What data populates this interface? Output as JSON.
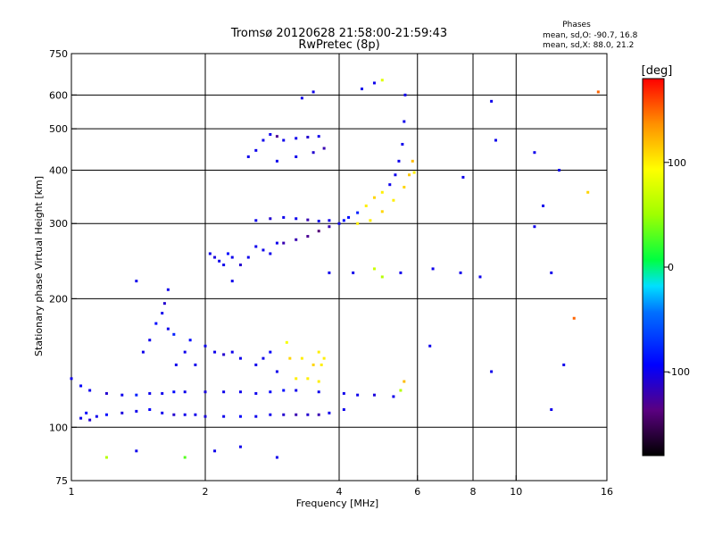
{
  "chart_data": {
    "type": "scatter",
    "title": "Tromsø 20120628 21:58:00-21:59:43",
    "subtitle": "RwPretec (8p)",
    "xlabel": "Frequency [MHz]",
    "ylabel": "Stationary phase Virtual Height [km]",
    "x_scale": "log",
    "y_scale": "log",
    "xlim": [
      1,
      16
    ],
    "ylim": [
      75,
      750
    ],
    "x_ticks": [
      1,
      2,
      4,
      6,
      8,
      10,
      16
    ],
    "x_tick_labels": [
      "1",
      "2",
      "4",
      "6",
      "8",
      "10",
      "16"
    ],
    "x_grid": [
      2,
      4,
      6,
      8,
      10
    ],
    "y_ticks": [
      75,
      100,
      200,
      300,
      400,
      500,
      600,
      750
    ],
    "y_tick_labels": [
      "75",
      "100",
      "200",
      "300",
      "400",
      "500",
      "600",
      "750"
    ],
    "y_grid": [
      100,
      200,
      300,
      400,
      500,
      600
    ],
    "grid": true,
    "phases": {
      "header": "Phases",
      "line_o": "mean, sd,O: -90.7, 16.8",
      "line_x": "mean, sd,X:  88.0, 21.2"
    },
    "colorbar": {
      "label": "[deg]",
      "range": [
        -180,
        180
      ],
      "ticks": [
        100,
        0,
        -100
      ],
      "tick_labels": [
        "100",
        "0",
        "-100"
      ]
    },
    "series": [
      {
        "points": [
          [
            1.05,
            105,
            -100
          ],
          [
            1.08,
            108,
            -95
          ],
          [
            1.1,
            104,
            -110
          ],
          [
            1.14,
            106,
            -100
          ],
          [
            1.2,
            107,
            -90
          ],
          [
            1.3,
            108,
            -105
          ],
          [
            1.4,
            109,
            -100
          ],
          [
            1.5,
            110,
            -95
          ],
          [
            1.6,
            108,
            -100
          ],
          [
            1.7,
            107,
            -110
          ],
          [
            1.8,
            107,
            -100
          ],
          [
            1.9,
            107,
            -100
          ],
          [
            2.0,
            106,
            -105
          ],
          [
            2.2,
            106,
            -100
          ],
          [
            2.4,
            106,
            -95
          ],
          [
            2.6,
            106,
            -100
          ],
          [
            2.8,
            107,
            -100
          ],
          [
            3.0,
            107,
            -110
          ],
          [
            3.2,
            107,
            -120
          ],
          [
            3.4,
            107,
            -110
          ],
          [
            3.6,
            107,
            -120
          ],
          [
            3.8,
            108,
            -100
          ],
          [
            4.1,
            110,
            -100
          ],
          [
            1.0,
            130,
            -100
          ],
          [
            1.05,
            125,
            -95
          ],
          [
            1.1,
            122,
            -100
          ],
          [
            1.2,
            120,
            -110
          ],
          [
            1.3,
            119,
            -100
          ],
          [
            1.4,
            119,
            -80
          ],
          [
            1.5,
            120,
            -100
          ],
          [
            1.6,
            120,
            -100
          ],
          [
            1.7,
            121,
            -90
          ],
          [
            1.8,
            121,
            -100
          ],
          [
            2.0,
            121,
            -105
          ],
          [
            2.2,
            121,
            -100
          ],
          [
            2.4,
            121,
            -100
          ],
          [
            2.6,
            120,
            -100
          ],
          [
            2.8,
            121,
            -95
          ],
          [
            3.0,
            122,
            -90
          ],
          [
            3.2,
            122,
            -100
          ],
          [
            3.6,
            121,
            -100
          ],
          [
            4.1,
            120,
            -100
          ],
          [
            4.4,
            119,
            -100
          ],
          [
            4.8,
            119,
            -105
          ],
          [
            5.3,
            118,
            -100
          ],
          [
            5.5,
            122,
            60
          ],
          [
            5.6,
            128,
            120
          ],
          [
            1.45,
            150,
            -100
          ],
          [
            1.5,
            160,
            -100
          ],
          [
            1.55,
            175,
            -90
          ],
          [
            1.6,
            185,
            -100
          ],
          [
            1.62,
            195,
            -110
          ],
          [
            1.65,
            170,
            -100
          ],
          [
            1.7,
            165,
            -80
          ],
          [
            1.72,
            140,
            -100
          ],
          [
            1.8,
            150,
            -100
          ],
          [
            1.85,
            160,
            -90
          ],
          [
            1.9,
            140,
            -100
          ],
          [
            2.0,
            155,
            -100
          ],
          [
            2.1,
            150,
            -100
          ],
          [
            2.2,
            148,
            -110
          ],
          [
            2.3,
            150,
            -100
          ],
          [
            2.4,
            145,
            -100
          ],
          [
            2.6,
            140,
            -100
          ],
          [
            2.7,
            145,
            -100
          ],
          [
            2.8,
            150,
            -95
          ],
          [
            2.9,
            135,
            -100
          ],
          [
            3.05,
            158,
            90
          ],
          [
            3.1,
            145,
            110
          ],
          [
            3.2,
            130,
            100
          ],
          [
            3.3,
            145,
            100
          ],
          [
            3.4,
            130,
            100
          ],
          [
            3.5,
            140,
            110
          ],
          [
            3.6,
            150,
            100
          ],
          [
            3.6,
            128,
            100
          ],
          [
            3.65,
            140,
            100
          ],
          [
            3.7,
            145,
            100
          ],
          [
            2.05,
            255,
            -100
          ],
          [
            2.1,
            250,
            -105
          ],
          [
            2.15,
            245,
            -100
          ],
          [
            2.2,
            240,
            -100
          ],
          [
            2.25,
            255,
            -90
          ],
          [
            2.3,
            250,
            -100
          ],
          [
            2.4,
            240,
            -110
          ],
          [
            2.5,
            250,
            -100
          ],
          [
            2.6,
            265,
            -100
          ],
          [
            2.7,
            260,
            -100
          ],
          [
            2.8,
            255,
            -100
          ],
          [
            2.9,
            270,
            -100
          ],
          [
            3.0,
            270,
            -120
          ],
          [
            3.2,
            275,
            -120
          ],
          [
            3.4,
            280,
            -130
          ],
          [
            3.6,
            288,
            -140
          ],
          [
            3.8,
            295,
            -120
          ],
          [
            4.0,
            300,
            -100
          ],
          [
            4.2,
            310,
            -90
          ],
          [
            4.4,
            318,
            -80
          ],
          [
            4.6,
            330,
            100
          ],
          [
            4.8,
            345,
            110
          ],
          [
            5.0,
            355,
            100
          ],
          [
            5.2,
            370,
            -100
          ],
          [
            5.35,
            390,
            -100
          ],
          [
            5.45,
            420,
            -100
          ],
          [
            5.55,
            460,
            -100
          ],
          [
            5.6,
            520,
            -100
          ],
          [
            5.63,
            600,
            -100
          ],
          [
            2.6,
            305,
            -100
          ],
          [
            2.8,
            308,
            -110
          ],
          [
            3.0,
            310,
            -100
          ],
          [
            3.2,
            308,
            -100
          ],
          [
            3.4,
            306,
            -120
          ],
          [
            3.6,
            304,
            -100
          ],
          [
            3.8,
            305,
            -100
          ],
          [
            4.1,
            305,
            -90
          ],
          [
            4.4,
            300,
            100
          ],
          [
            4.7,
            305,
            100
          ],
          [
            5.0,
            320,
            110
          ],
          [
            5.3,
            340,
            100
          ],
          [
            5.6,
            365,
            110
          ],
          [
            5.75,
            390,
            115
          ],
          [
            5.85,
            420,
            120
          ],
          [
            5.9,
            395,
            100
          ],
          [
            2.5,
            430,
            -100
          ],
          [
            2.6,
            445,
            -100
          ],
          [
            2.7,
            470,
            -100
          ],
          [
            2.8,
            485,
            -100
          ],
          [
            2.9,
            480,
            -130
          ],
          [
            3.0,
            470,
            -100
          ],
          [
            3.2,
            475,
            -100
          ],
          [
            3.4,
            478,
            -110
          ],
          [
            3.6,
            480,
            -100
          ],
          [
            2.9,
            420,
            -100
          ],
          [
            3.2,
            430,
            -100
          ],
          [
            3.5,
            440,
            -110
          ],
          [
            3.7,
            450,
            -120
          ],
          [
            3.3,
            590,
            -100
          ],
          [
            3.5,
            610,
            -100
          ],
          [
            4.5,
            620,
            -100
          ],
          [
            4.8,
            640,
            -100
          ],
          [
            5.0,
            650,
            80
          ],
          [
            1.4,
            220,
            -100
          ],
          [
            1.65,
            210,
            -100
          ],
          [
            2.3,
            220,
            -100
          ],
          [
            3.8,
            230,
            -100
          ],
          [
            4.3,
            230,
            -100
          ],
          [
            4.8,
            235,
            70
          ],
          [
            5.0,
            225,
            60
          ],
          [
            5.5,
            230,
            -100
          ],
          [
            6.5,
            235,
            -100
          ],
          [
            7.5,
            230,
            -100
          ],
          [
            8.3,
            225,
            -100
          ],
          [
            12.0,
            230,
            -100
          ],
          [
            1.2,
            85,
            60
          ],
          [
            1.4,
            88,
            -100
          ],
          [
            1.8,
            85,
            30
          ],
          [
            2.1,
            88,
            -100
          ],
          [
            2.4,
            90,
            -100
          ],
          [
            2.9,
            85,
            -100
          ],
          [
            6.4,
            155,
            -100
          ],
          [
            7.6,
            385,
            -100
          ],
          [
            8.8,
            580,
            -100
          ],
          [
            9.0,
            470,
            -100
          ],
          [
            8.8,
            135,
            -100
          ],
          [
            11.0,
            440,
            -100
          ],
          [
            11.5,
            330,
            -100
          ],
          [
            12.0,
            110,
            -100
          ],
          [
            12.5,
            400,
            -100
          ],
          [
            12.8,
            140,
            -100
          ],
          [
            13.5,
            180,
            150
          ],
          [
            14.5,
            355,
            110
          ],
          [
            15.3,
            610,
            150
          ],
          [
            11.0,
            295,
            -100
          ]
        ]
      }
    ]
  }
}
